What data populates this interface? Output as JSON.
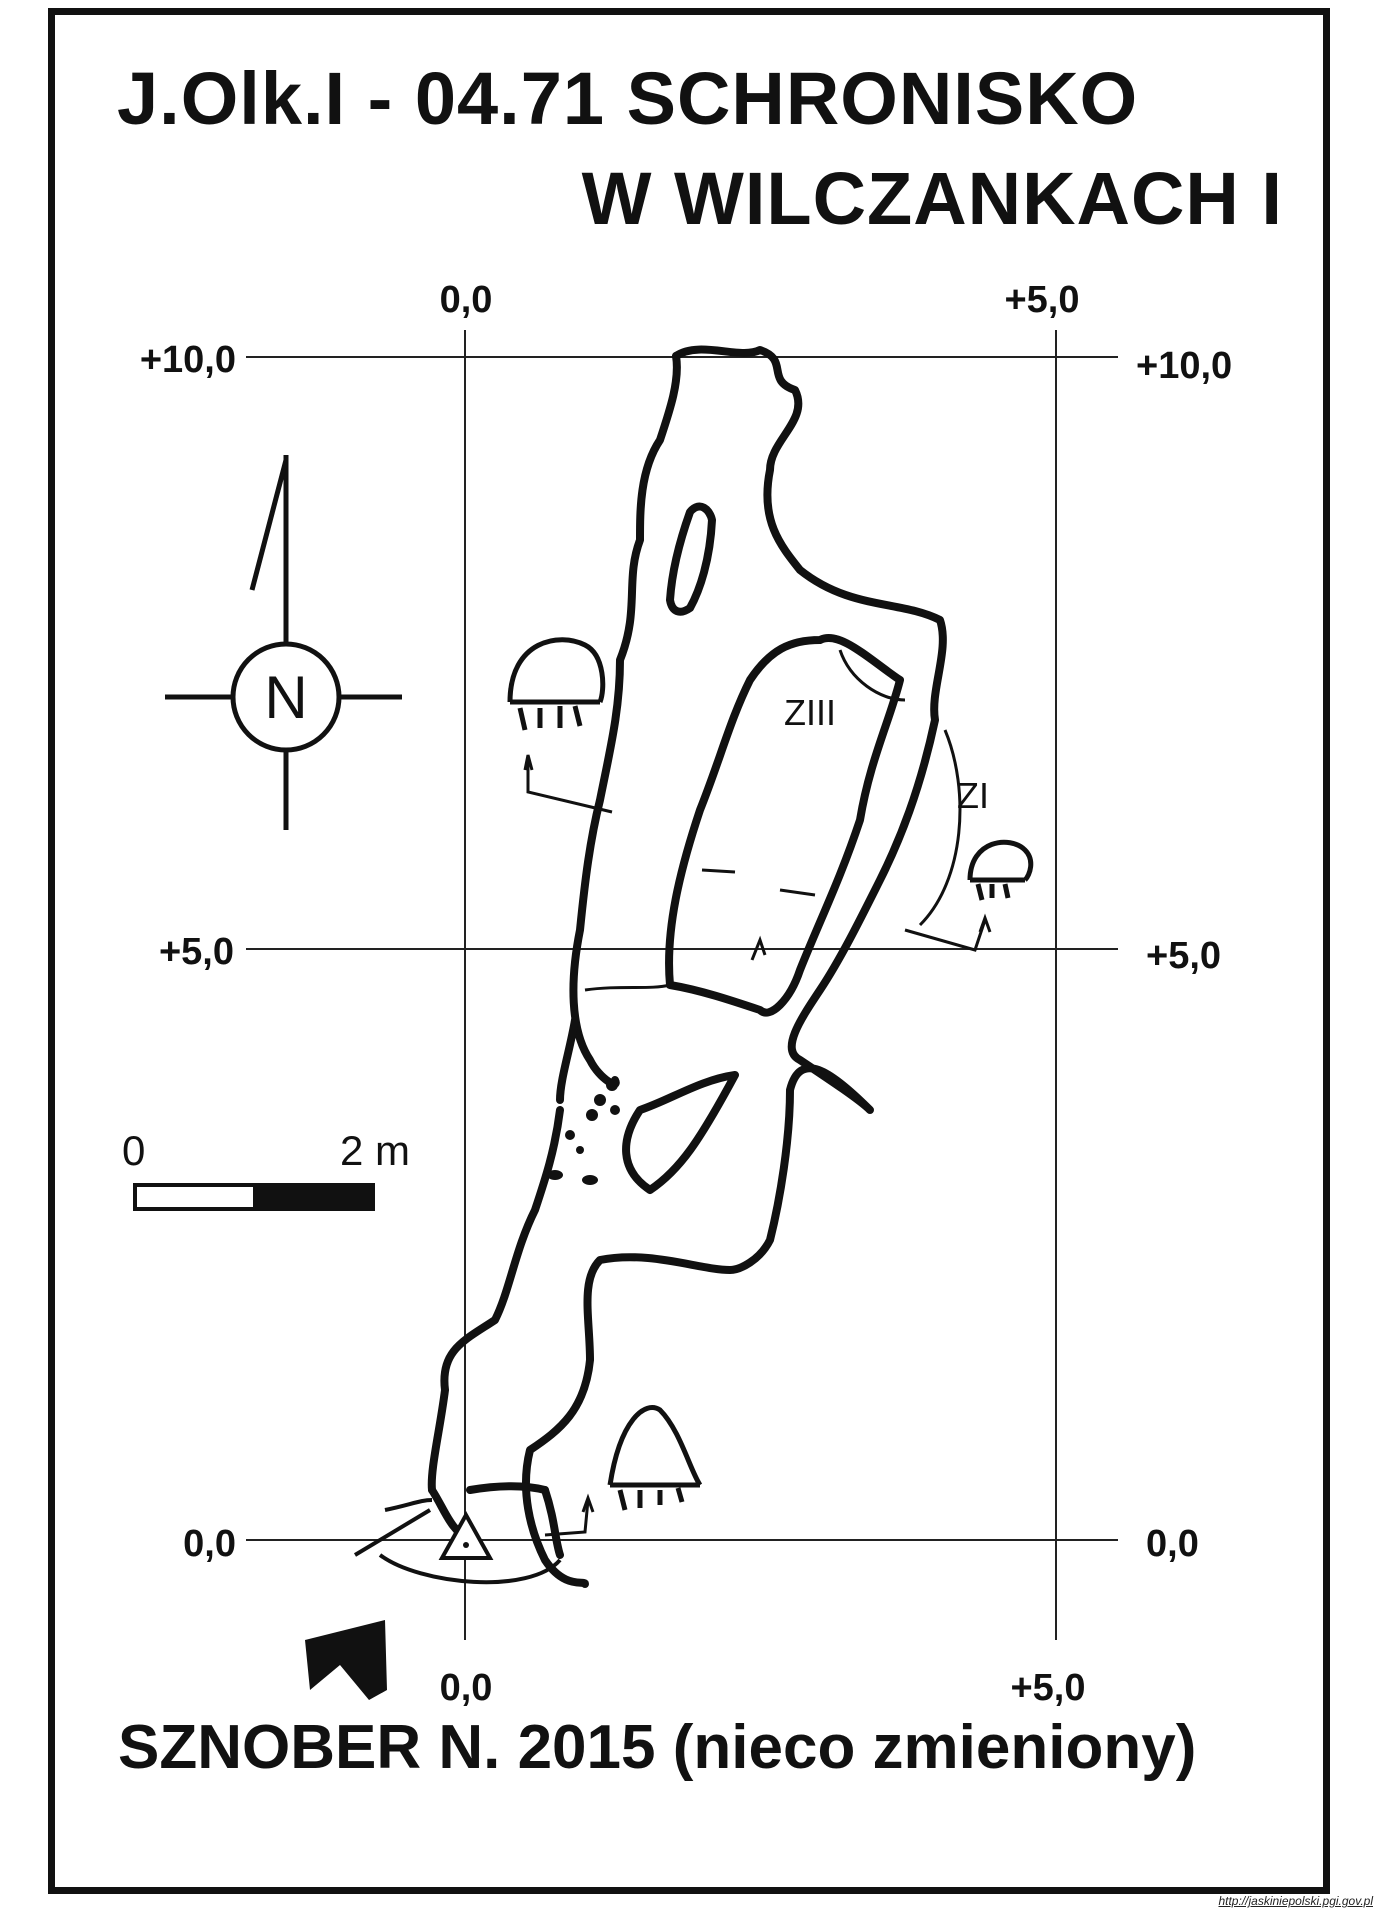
{
  "title": {
    "line1": "J.Olk.I - 04.71  SCHRONISKO",
    "line2": "W WILCZANKACH  I"
  },
  "grid_labels": {
    "x_zero": "0,0",
    "x_five": "+5,0",
    "y_ten": "+10,0",
    "y_five": "+5,0",
    "y_zero": "0,0"
  },
  "compass": {
    "letter": "N",
    "icon": "north-arrow-icon"
  },
  "scale_bar": {
    "start": "0",
    "end": "2 m"
  },
  "profile_labels": {
    "z1": "ZI",
    "z3": "ZIII"
  },
  "footer": {
    "credit": "SZNOBER N.  2015 (nieco zmieniony)"
  },
  "watermark": {
    "url": "http://jaskiniepolski.pgi.gov.pl"
  }
}
